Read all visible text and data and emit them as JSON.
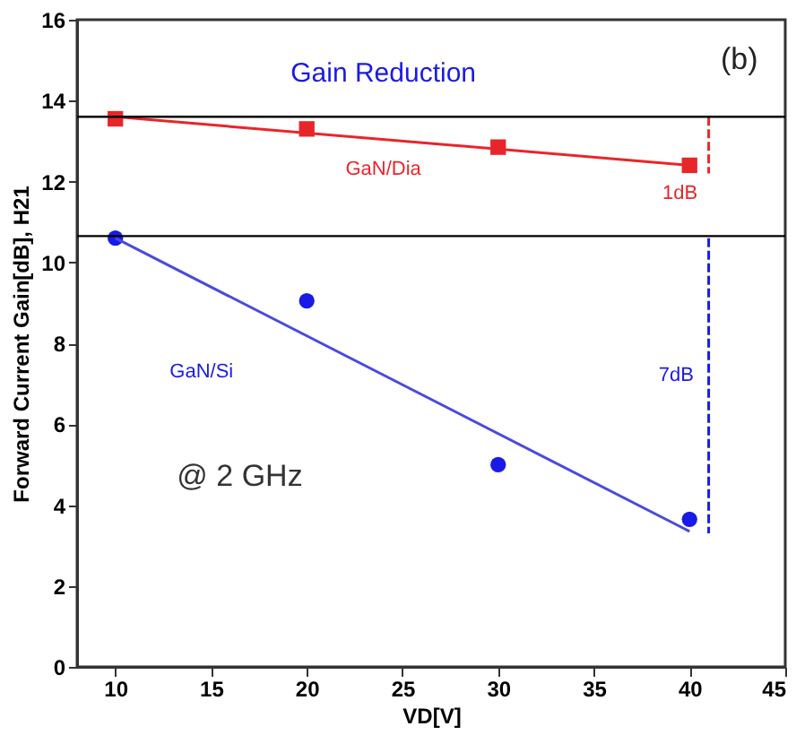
{
  "chart_data": {
    "type": "scatter",
    "xlabel": "VD[V]",
    "ylabel": "Forward Current Gain[dB], H21",
    "xlim": [
      8,
      45
    ],
    "xticks": [
      10,
      15,
      20,
      25,
      30,
      35,
      40,
      45
    ],
    "ylim": [
      0,
      16
    ],
    "yticks": [
      0,
      2,
      4,
      6,
      8,
      10,
      12,
      14,
      16
    ],
    "grid": false,
    "legend": false,
    "series": [
      {
        "name": "GaN/Dia",
        "marker": "square",
        "color": "#e8262a",
        "x": [
          10,
          20,
          30,
          40
        ],
        "values": [
          13.55,
          13.3,
          12.85,
          12.4
        ]
      },
      {
        "name": "GaN/Si",
        "marker": "circle",
        "color": "#1a1ae6",
        "x": [
          10,
          20,
          30,
          40
        ],
        "values": [
          10.6,
          9.05,
          5.0,
          3.65
        ]
      },
      {
        "type": "line",
        "color": "#e8262a",
        "line_style": "solid",
        "x": [
          10,
          40
        ],
        "values": [
          13.6,
          12.4
        ]
      },
      {
        "type": "line",
        "color": "#4a4ae0",
        "line_style": "solid",
        "x": [
          10,
          40
        ],
        "values": [
          10.6,
          3.35
        ]
      },
      {
        "type": "line",
        "color": "#e8262a",
        "line_style": "dashed",
        "x": [
          41,
          41
        ],
        "values": [
          13.6,
          12.2
        ]
      },
      {
        "type": "line",
        "color": "#1a1ae6",
        "line_style": "dashed",
        "x": [
          41,
          41
        ],
        "values": [
          10.6,
          3.3
        ]
      }
    ],
    "ref_lines": [
      {
        "axis": "y",
        "value": 13.6,
        "color": "#000000"
      },
      {
        "axis": "y",
        "value": 10.65,
        "color": "#000000"
      }
    ],
    "annotations": [
      "Gain Reduction",
      "(b)",
      "1dB",
      "7dB",
      "@ 2 GHz"
    ]
  }
}
